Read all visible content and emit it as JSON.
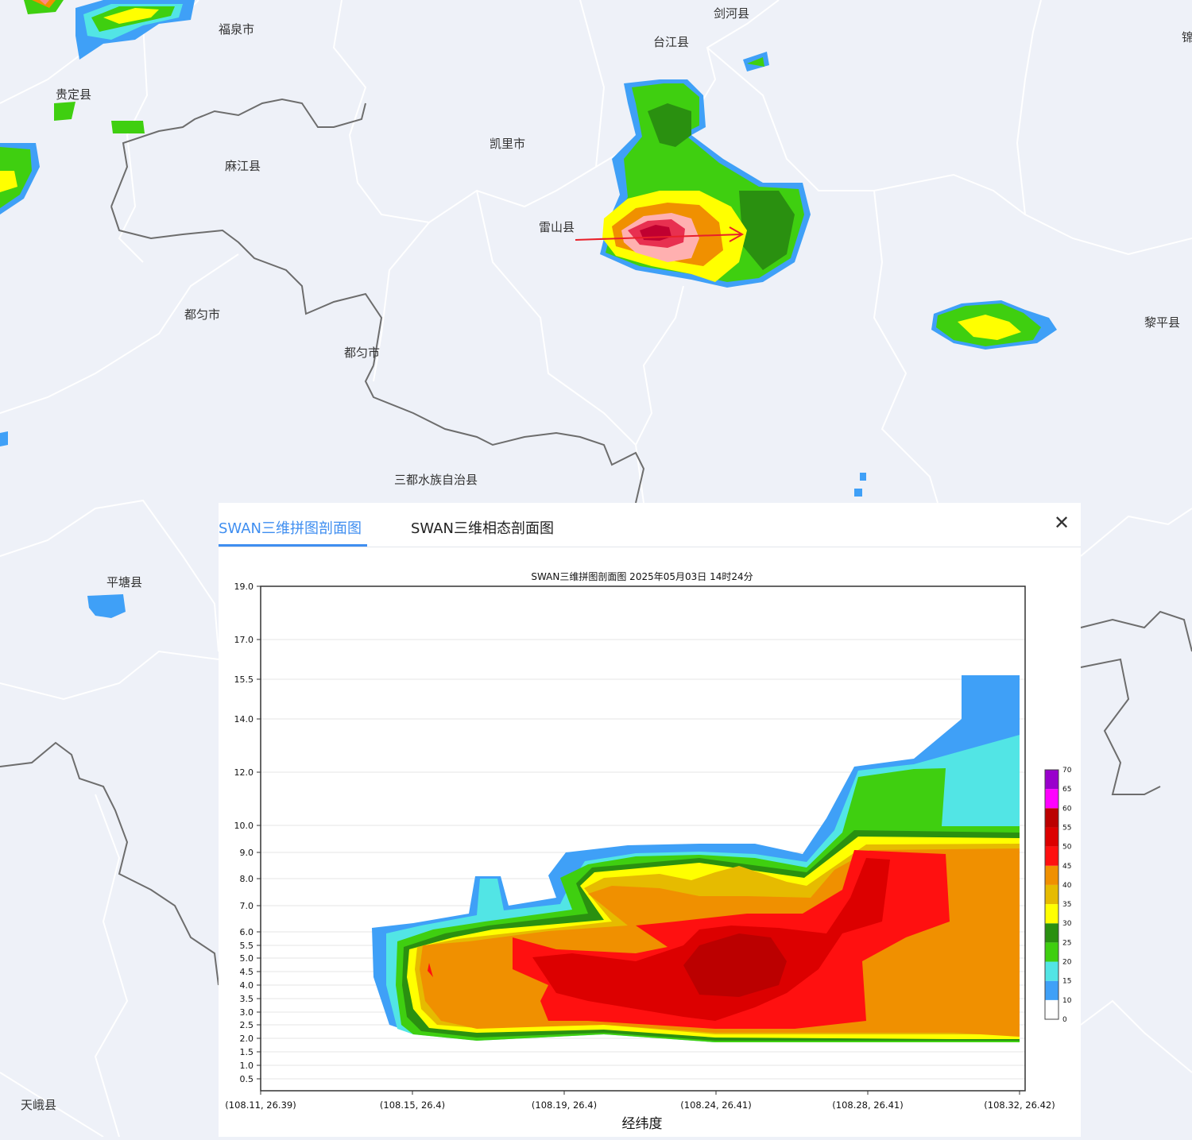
{
  "map": {
    "cities": [
      {
        "id": "fuquan",
        "name": "福泉市"
      },
      {
        "id": "taijiang",
        "name": "台江县"
      },
      {
        "id": "jianhe",
        "name": "剑河县"
      },
      {
        "id": "guiding",
        "name": "贵定县"
      },
      {
        "id": "kaili",
        "name": "凯里市"
      },
      {
        "id": "majiang",
        "name": "麻江县"
      },
      {
        "id": "leishan",
        "name": "雷山县"
      },
      {
        "id": "duyun1",
        "name": "都匀市"
      },
      {
        "id": "duyun2",
        "name": "都匀市"
      },
      {
        "id": "liping",
        "name": "黎平县"
      },
      {
        "id": "sandu",
        "name": "三都水族自治县"
      },
      {
        "id": "pingtang",
        "name": "平塘县"
      },
      {
        "id": "tiane",
        "name": "天峨县"
      },
      {
        "id": "jin",
        "name": "锦"
      }
    ]
  },
  "panel": {
    "tabs": [
      {
        "label": "SWAN三维拼图剖面图",
        "active": true
      },
      {
        "label": "SWAN三维相态剖面图",
        "active": false
      }
    ],
    "close_glyph": "✕"
  },
  "chart_data": {
    "type": "heatmap",
    "title": "SWAN三维拼图剖面图 2025年05月03日 14时24分",
    "xlabel": "经纬度",
    "ylabel": "",
    "x_ticks": [
      "(108.11, 26.39)",
      "(108.15, 26.4)",
      "(108.19, 26.4)",
      "(108.24, 26.41)",
      "(108.28, 26.41)",
      "(108.32, 26.42)"
    ],
    "y_ticks": [
      "0.5",
      "1.0",
      "1.5",
      "2.0",
      "2.5",
      "3.0",
      "3.5",
      "4.0",
      "4.5",
      "5.0",
      "5.5",
      "6.0",
      "7.0",
      "8.0",
      "9.0",
      "10.0",
      "12.0",
      "14.0",
      "15.5",
      "17.0",
      "19.0"
    ],
    "ylim": [
      0,
      19
    ],
    "colorbar": {
      "levels": [
        0,
        10,
        15,
        20,
        25,
        30,
        35,
        40,
        45,
        50,
        55,
        60,
        65,
        70
      ],
      "colors": [
        "#ffffff",
        "#3fa0f7",
        "#52e5e5",
        "#3fcf10",
        "#2a9010",
        "#ffff00",
        "#e6bb00",
        "#f09000",
        "#ff1010",
        "#dc0000",
        "#bb0000",
        "#ff00ff",
        "#9900cc"
      ]
    },
    "profile_layers": [
      {
        "dbz": 10,
        "pts": [
          [
            468,
            1168
          ],
          [
            520,
            1162
          ],
          [
            590,
            1150
          ],
          [
            598,
            1103
          ],
          [
            630,
            1103
          ],
          [
            640,
            1140
          ],
          [
            700,
            1130
          ],
          [
            690,
            1102
          ],
          [
            712,
            1073
          ],
          [
            790,
            1064
          ],
          [
            880,
            1062
          ],
          [
            950,
            1062
          ],
          [
            1010,
            1075
          ],
          [
            1040,
            1030
          ],
          [
            1075,
            965
          ],
          [
            1150,
            955
          ],
          [
            1210,
            905
          ],
          [
            1210,
            850
          ],
          [
            1283,
            850
          ],
          [
            1283,
            1312
          ],
          [
            900,
            1312
          ],
          [
            760,
            1300
          ],
          [
            600,
            1308
          ],
          [
            520,
            1300
          ],
          [
            490,
            1290
          ],
          [
            470,
            1230
          ]
        ]
      },
      {
        "dbz": 15,
        "pts": [
          [
            486,
            1175
          ],
          [
            530,
            1165
          ],
          [
            600,
            1152
          ],
          [
            604,
            1106
          ],
          [
            626,
            1106
          ],
          [
            634,
            1146
          ],
          [
            705,
            1138
          ],
          [
            718,
            1112
          ],
          [
            736,
            1084
          ],
          [
            800,
            1074
          ],
          [
            880,
            1072
          ],
          [
            950,
            1075
          ],
          [
            1015,
            1085
          ],
          [
            1050,
            1045
          ],
          [
            1080,
            970
          ],
          [
            1150,
            962
          ],
          [
            1283,
            925
          ],
          [
            1283,
            1312
          ],
          [
            900,
            1312
          ],
          [
            760,
            1302
          ],
          [
            600,
            1310
          ],
          [
            520,
            1302
          ],
          [
            500,
            1295
          ],
          [
            486,
            1240
          ]
        ]
      },
      {
        "dbz": 20,
        "pts": [
          [
            500,
            1185
          ],
          [
            545,
            1170
          ],
          [
            610,
            1160
          ],
          [
            720,
            1145
          ],
          [
            705,
            1105
          ],
          [
            740,
            1088
          ],
          [
            800,
            1078
          ],
          [
            880,
            1076
          ],
          [
            950,
            1080
          ],
          [
            1015,
            1092
          ],
          [
            1060,
            1048
          ],
          [
            1080,
            978
          ],
          [
            1150,
            968
          ],
          [
            1190,
            967
          ],
          [
            1185,
            1040
          ],
          [
            1283,
            1040
          ],
          [
            1283,
            1312
          ],
          [
            900,
            1312
          ],
          [
            760,
            1302
          ],
          [
            600,
            1310
          ],
          [
            520,
            1302
          ],
          [
            505,
            1290
          ],
          [
            498,
            1240
          ]
        ]
      },
      {
        "dbz": 25,
        "pts": [
          [
            508,
            1192
          ],
          [
            560,
            1175
          ],
          [
            615,
            1165
          ],
          [
            740,
            1150
          ],
          [
            725,
            1112
          ],
          [
            745,
            1092
          ],
          [
            880,
            1080
          ],
          [
            1015,
            1098
          ],
          [
            1075,
            1045
          ],
          [
            1283,
            1048
          ],
          [
            1283,
            1310
          ],
          [
            900,
            1310
          ],
          [
            760,
            1300
          ],
          [
            600,
            1306
          ],
          [
            530,
            1298
          ],
          [
            512,
            1280
          ],
          [
            506,
            1240
          ]
        ]
      },
      {
        "dbz": 30,
        "pts": [
          [
            515,
            1195
          ],
          [
            570,
            1180
          ],
          [
            620,
            1170
          ],
          [
            760,
            1158
          ],
          [
            730,
            1115
          ],
          [
            748,
            1098
          ],
          [
            880,
            1086
          ],
          [
            1012,
            1105
          ],
          [
            1080,
            1053
          ],
          [
            1283,
            1055
          ],
          [
            1283,
            1308
          ],
          [
            1200,
            1308
          ],
          [
            900,
            1306
          ],
          [
            760,
            1296
          ],
          [
            600,
            1300
          ],
          [
            540,
            1294
          ],
          [
            520,
            1270
          ],
          [
            512,
            1230
          ]
        ]
      },
      {
        "dbz": 35,
        "pts": [
          [
            525,
            1192
          ],
          [
            575,
            1182
          ],
          [
            700,
            1168
          ],
          [
            770,
            1160
          ],
          [
            735,
            1118
          ],
          [
            760,
            1105
          ],
          [
            830,
            1100
          ],
          [
            870,
            1108
          ],
          [
            900,
            1098
          ],
          [
            930,
            1090
          ],
          [
            990,
            1110
          ],
          [
            1015,
            1115
          ],
          [
            1090,
            1063
          ],
          [
            1283,
            1062
          ],
          [
            1283,
            1302
          ],
          [
            1200,
            1302
          ],
          [
            900,
            1302
          ],
          [
            760,
            1290
          ],
          [
            600,
            1294
          ],
          [
            550,
            1290
          ],
          [
            530,
            1270
          ],
          [
            522,
            1220
          ]
        ]
      },
      {
        "dbz": 40,
        "pts": [
          [
            532,
            1190
          ],
          [
            590,
            1185
          ],
          [
            690,
            1172
          ],
          [
            790,
            1165
          ],
          [
            740,
            1125
          ],
          [
            770,
            1115
          ],
          [
            830,
            1118
          ],
          [
            880,
            1128
          ],
          [
            940,
            1128
          ],
          [
            1020,
            1130
          ],
          [
            1050,
            1095
          ],
          [
            1095,
            1070
          ],
          [
            1283,
            1068
          ],
          [
            1283,
            1305
          ],
          [
            1200,
            1300
          ],
          [
            900,
            1300
          ],
          [
            760,
            1290
          ],
          [
            600,
            1295
          ],
          [
            555,
            1285
          ],
          [
            535,
            1260
          ],
          [
            528,
            1220
          ]
        ]
      },
      {
        "dbz": 45,
        "pts": [
          [
            645,
            1180
          ],
          [
            700,
            1195
          ],
          [
            800,
            1200
          ],
          [
            840,
            1192
          ],
          [
            800,
            1165
          ],
          [
            850,
            1160
          ],
          [
            940,
            1150
          ],
          [
            1010,
            1150
          ],
          [
            1060,
            1120
          ],
          [
            1075,
            1070
          ],
          [
            1190,
            1075
          ],
          [
            1195,
            1160
          ],
          [
            1140,
            1180
          ],
          [
            1085,
            1210
          ],
          [
            1090,
            1285
          ],
          [
            1000,
            1295
          ],
          [
            900,
            1295
          ],
          [
            820,
            1290
          ],
          [
            740,
            1285
          ],
          [
            690,
            1285
          ],
          [
            680,
            1260
          ],
          [
            690,
            1240
          ],
          [
            645,
            1220
          ]
        ]
      },
      {
        "dbz": 50,
        "pts": [
          [
            670,
            1205
          ],
          [
            720,
            1200
          ],
          [
            800,
            1210
          ],
          [
            860,
            1190
          ],
          [
            880,
            1170
          ],
          [
            920,
            1165
          ],
          [
            980,
            1168
          ],
          [
            1040,
            1175
          ],
          [
            1070,
            1130
          ],
          [
            1090,
            1080
          ],
          [
            1120,
            1082
          ],
          [
            1110,
            1160
          ],
          [
            1060,
            1175
          ],
          [
            1030,
            1220
          ],
          [
            990,
            1250
          ],
          [
            950,
            1268
          ],
          [
            900,
            1285
          ],
          [
            860,
            1280
          ],
          [
            800,
            1270
          ],
          [
            740,
            1260
          ],
          [
            700,
            1250
          ]
        ]
      },
      {
        "dbz": 55,
        "pts": [
          [
            860,
            1215
          ],
          [
            880,
            1190
          ],
          [
            930,
            1175
          ],
          [
            970,
            1180
          ],
          [
            990,
            1210
          ],
          [
            980,
            1240
          ],
          [
            930,
            1255
          ],
          [
            880,
            1252
          ]
        ]
      },
      {
        "dbz": 45,
        "pts": [
          [
            538,
            1222
          ],
          [
            545,
            1230
          ],
          [
            540,
            1212
          ]
        ]
      }
    ]
  }
}
